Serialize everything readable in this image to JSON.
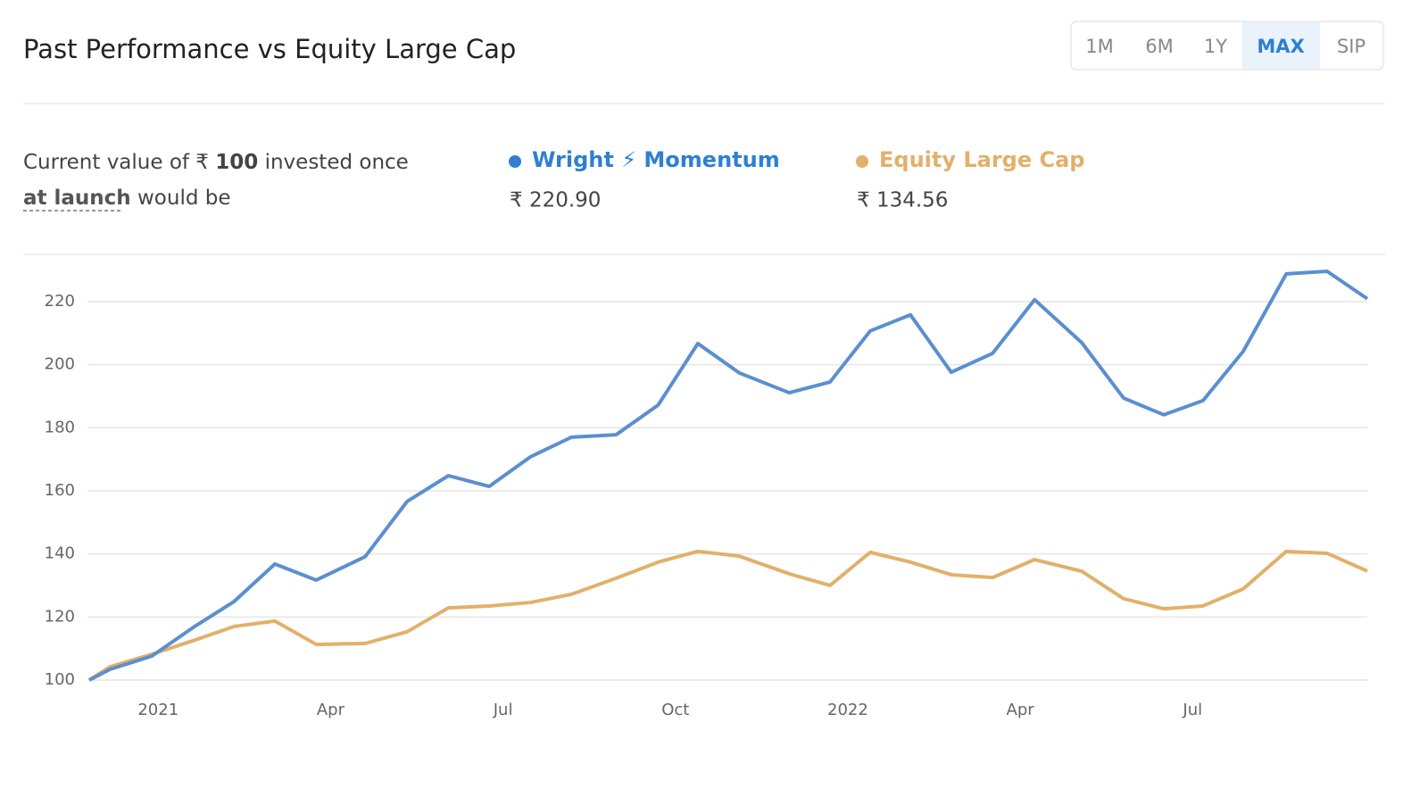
{
  "header": {
    "title": "Past Performance vs Equity Large Cap",
    "tabs": [
      "1M",
      "6M",
      "1Y",
      "MAX",
      "SIP"
    ],
    "selected": 3
  },
  "summary": {
    "prefix": "Current value of ₹",
    "amount": "100",
    "middle": "invested once",
    "link": "at launch",
    "suffix": "would be"
  },
  "chart_data": {
    "type": "line",
    "x": [
      -1.2,
      -0.84,
      -0.11,
      0.61,
      1.32,
      2.03,
      2.75,
      3.6,
      4.33,
      5.05,
      5.76,
      6.48,
      7.19,
      7.97,
      8.7,
      9.39,
      10.11,
      10.98,
      11.69,
      12.39,
      13.09,
      13.8,
      14.52,
      15.25,
      16.07,
      16.8,
      17.5,
      18.18,
      18.88,
      19.63,
      20.34,
      21.04
    ],
    "series": [
      {
        "name": "Wright ⚡ Momentum",
        "color": "#5b8fcf",
        "current_label": "₹ 220.90",
        "values": [
          100,
          103.4,
          107.6,
          116.7,
          124.9,
          136.8,
          131.7,
          139.1,
          156.6,
          164.8,
          161.4,
          170.8,
          177.0,
          177.8,
          187.2,
          206.7,
          197.4,
          191.1,
          194.5,
          210.7,
          215.8,
          197.6,
          203.6,
          220.6,
          207.0,
          189.4,
          184.1,
          188.6,
          204.2,
          228.8,
          229.6,
          220.9
        ]
      },
      {
        "name": "Equity Large Cap",
        "color": "#e2b06b",
        "current_label": "₹ 134.56",
        "values": [
          100,
          104.2,
          108.2,
          112.5,
          117.0,
          118.7,
          111.3,
          111.6,
          115.3,
          122.9,
          123.5,
          124.6,
          127.2,
          132.3,
          137.4,
          140.8,
          139.3,
          133.7,
          130.0,
          140.5,
          137.4,
          133.4,
          132.5,
          138.2,
          134.5,
          125.8,
          122.6,
          123.5,
          128.9,
          140.8,
          140.2,
          134.56
        ]
      }
    ],
    "xlim": [
      -1.2,
      21.04
    ],
    "xticks": [
      {
        "value": 0,
        "label": "2021"
      },
      {
        "value": 3,
        "label": "Apr"
      },
      {
        "value": 6,
        "label": "Jul"
      },
      {
        "value": 9,
        "label": "Oct"
      },
      {
        "value": 12,
        "label": "2022"
      },
      {
        "value": 15,
        "label": "Apr"
      },
      {
        "value": 18,
        "label": "Jul"
      }
    ],
    "ylim": [
      100,
      233
    ],
    "yticks": [
      100,
      120,
      140,
      160,
      180,
      200,
      220
    ],
    "grid": true
  }
}
